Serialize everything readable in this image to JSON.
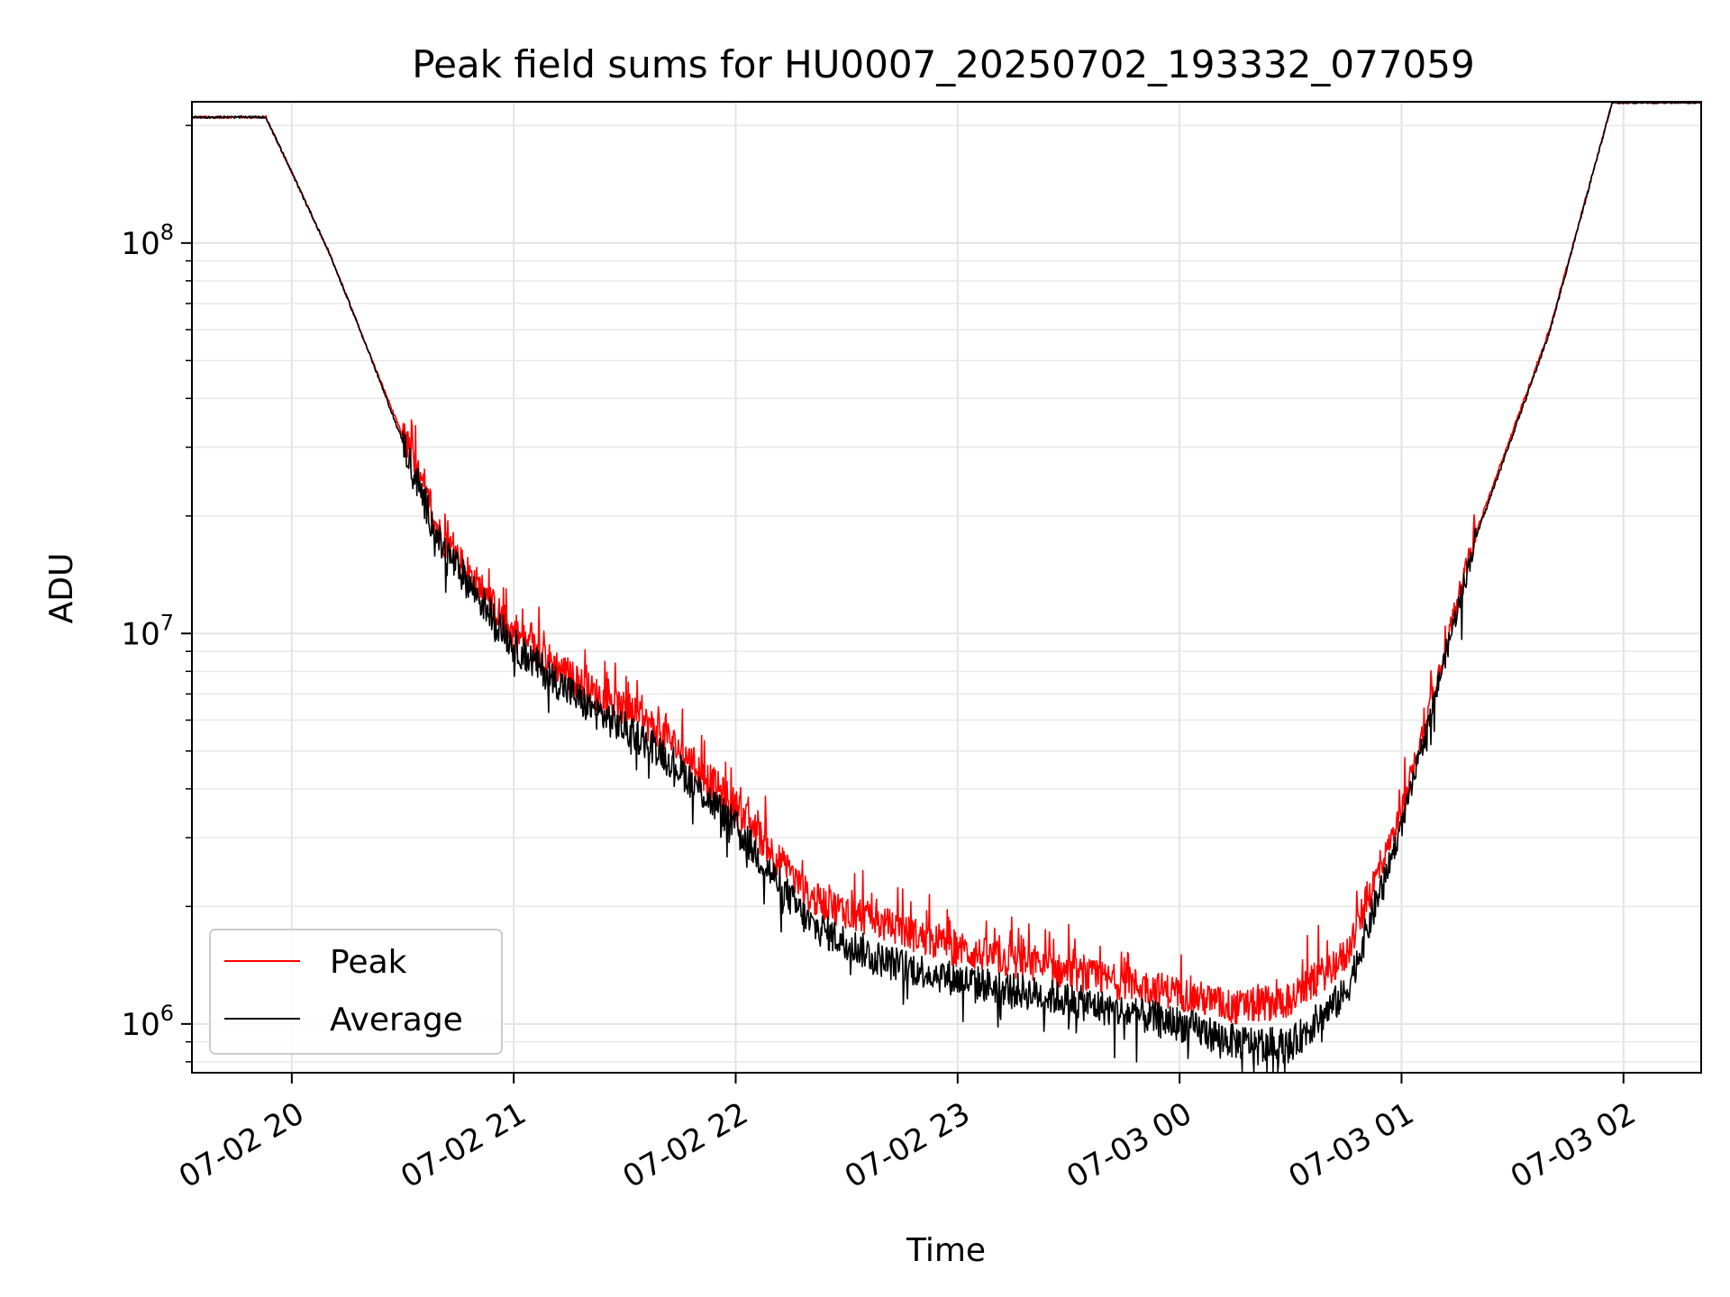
{
  "chart_data": {
    "type": "line",
    "title": "Peak field sums for HU0007_20250702_193332_077059",
    "xlabel": "Time",
    "ylabel": "ADU",
    "x_scale": "time",
    "y_scale": "log",
    "xlim": [
      "2025-07-02 19:33",
      "2025-07-03 02:21"
    ],
    "ylim": [
      750000,
      230000000
    ],
    "grid": true,
    "legend_position": "lower-left",
    "x_ticks": [
      "07-02 20",
      "07-02 21",
      "07-02 22",
      "07-02 23",
      "07-03 00",
      "07-03 01",
      "07-03 02"
    ],
    "y_ticks": [
      {
        "base": "10",
        "exp": "6"
      },
      {
        "base": "10",
        "exp": "7"
      },
      {
        "base": "10",
        "exp": "8"
      }
    ],
    "series": [
      {
        "name": "Peak",
        "color": "#ff0000",
        "x": [
          "2025-07-02 19:33",
          "2025-07-02 19:53",
          "2025-07-02 20:10",
          "2025-07-02 20:20",
          "2025-07-02 20:30",
          "2025-07-02 20:40",
          "2025-07-02 21:00",
          "2025-07-02 21:20",
          "2025-07-02 21:40",
          "2025-07-02 22:00",
          "2025-07-02 22:20",
          "2025-07-02 22:40",
          "2025-07-02 23:00",
          "2025-07-02 23:30",
          "2025-07-03 00:00",
          "2025-07-03 00:15",
          "2025-07-03 00:30",
          "2025-07-03 00:45",
          "2025-07-03 01:00",
          "2025-07-03 01:20",
          "2025-07-03 01:40",
          "2025-07-03 01:57",
          "2025-07-03 02:21"
        ],
        "values": [
          210000000,
          210000000,
          95000000,
          55000000,
          32000000,
          18000000,
          10000000,
          7200000,
          5600000,
          3600000,
          2100000,
          1800000,
          1550000,
          1350000,
          1200000,
          1100000,
          1150000,
          1500000,
          3500000,
          18000000,
          60000000,
          230000000,
          230000000
        ]
      },
      {
        "name": "Average",
        "color": "#000000",
        "x": [
          "2025-07-02 19:33",
          "2025-07-02 19:53",
          "2025-07-02 20:10",
          "2025-07-02 20:20",
          "2025-07-02 20:30",
          "2025-07-02 20:40",
          "2025-07-02 21:00",
          "2025-07-02 21:20",
          "2025-07-02 21:40",
          "2025-07-02 22:00",
          "2025-07-02 22:20",
          "2025-07-02 22:40",
          "2025-07-02 23:00",
          "2025-07-02 23:30",
          "2025-07-03 00:00",
          "2025-07-03 00:15",
          "2025-07-03 00:30",
          "2025-07-03 00:45",
          "2025-07-03 01:00",
          "2025-07-03 01:20",
          "2025-07-03 01:40",
          "2025-07-03 01:57",
          "2025-07-03 02:21"
        ],
        "values": [
          210000000,
          210000000,
          95000000,
          55000000,
          31000000,
          17000000,
          9300000,
          6500000,
          5000000,
          3200000,
          1800000,
          1450000,
          1300000,
          1150000,
          1000000,
          900000,
          880000,
          1200000,
          3200000,
          17500000,
          59000000,
          230000000,
          230000000
        ]
      }
    ]
  }
}
